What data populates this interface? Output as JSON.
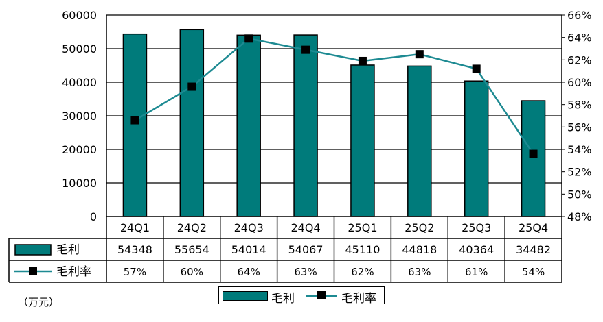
{
  "unit_label": "（万元）",
  "legend": {
    "bar_label": "毛利",
    "line_label": "毛利率"
  },
  "table": {
    "bar_row_label": "毛利",
    "line_row_label": "毛利率"
  },
  "colors": {
    "bar": "#007B7B",
    "line": "#1D8A92",
    "marker": "#000000"
  },
  "chart_data": {
    "type": "bar",
    "categories": [
      "24Q1",
      "24Q2",
      "24Q3",
      "24Q4",
      "25Q1",
      "25Q2",
      "25Q3",
      "25Q4"
    ],
    "series": [
      {
        "name": "毛利",
        "type": "bar",
        "axis": "left",
        "values": [
          54348,
          55654,
          54014,
          54067,
          45110,
          44818,
          40364,
          34482
        ]
      },
      {
        "name": "毛利率",
        "type": "line",
        "axis": "right",
        "values": [
          56.6,
          59.6,
          63.9,
          62.9,
          61.9,
          62.5,
          61.2,
          53.6
        ],
        "labels": [
          "57%",
          "60%",
          "64%",
          "63%",
          "62%",
          "63%",
          "61%",
          "54%"
        ]
      }
    ],
    "ylim_left": [
      0,
      60000
    ],
    "yticks_left": [
      "0",
      "10000",
      "20000",
      "30000",
      "40000",
      "50000",
      "60000"
    ],
    "ylim_right": [
      48,
      66
    ],
    "yticks_right": [
      "48%",
      "50%",
      "52%",
      "54%",
      "56%",
      "58%",
      "60%",
      "62%",
      "64%",
      "66%"
    ],
    "grid": true,
    "legend_position": "bottom"
  }
}
